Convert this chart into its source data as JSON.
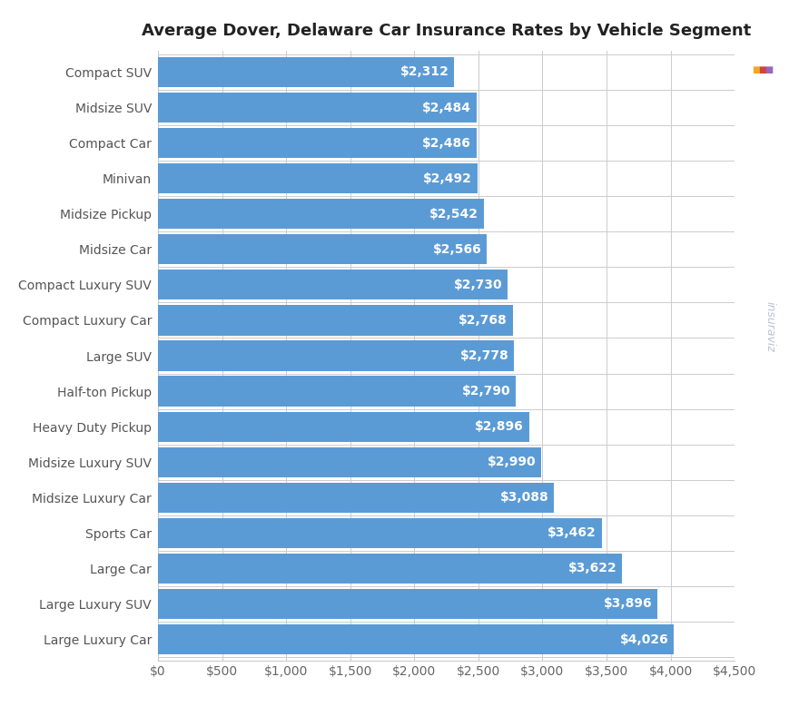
{
  "title": "Average Dover, Delaware Car Insurance Rates by Vehicle Segment",
  "categories": [
    "Large Luxury Car",
    "Large Luxury SUV",
    "Large Car",
    "Sports Car",
    "Midsize Luxury Car",
    "Midsize Luxury SUV",
    "Heavy Duty Pickup",
    "Half-ton Pickup",
    "Large SUV",
    "Compact Luxury Car",
    "Compact Luxury SUV",
    "Midsize Car",
    "Midsize Pickup",
    "Minivan",
    "Compact Car",
    "Midsize SUV",
    "Compact SUV"
  ],
  "values": [
    4026,
    3896,
    3622,
    3462,
    3088,
    2990,
    2896,
    2790,
    2778,
    2768,
    2730,
    2566,
    2542,
    2492,
    2486,
    2484,
    2312
  ],
  "bar_color": "#5b9bd5",
  "label_color": "#ffffff",
  "background_color": "#ffffff",
  "grid_color": "#cccccc",
  "title_fontsize": 13,
  "label_fontsize": 10,
  "tick_fontsize": 10,
  "ytick_fontsize": 10,
  "xlim": [
    0,
    4500
  ],
  "xticks": [
    0,
    500,
    1000,
    1500,
    2000,
    2500,
    3000,
    3500,
    4000,
    4500
  ],
  "watermark": "insuraviz",
  "wm_color": "#aab8cc",
  "wm_dot1": "#f5a623",
  "wm_dot2": "#cc4444",
  "wm_dot3": "#9966bb"
}
